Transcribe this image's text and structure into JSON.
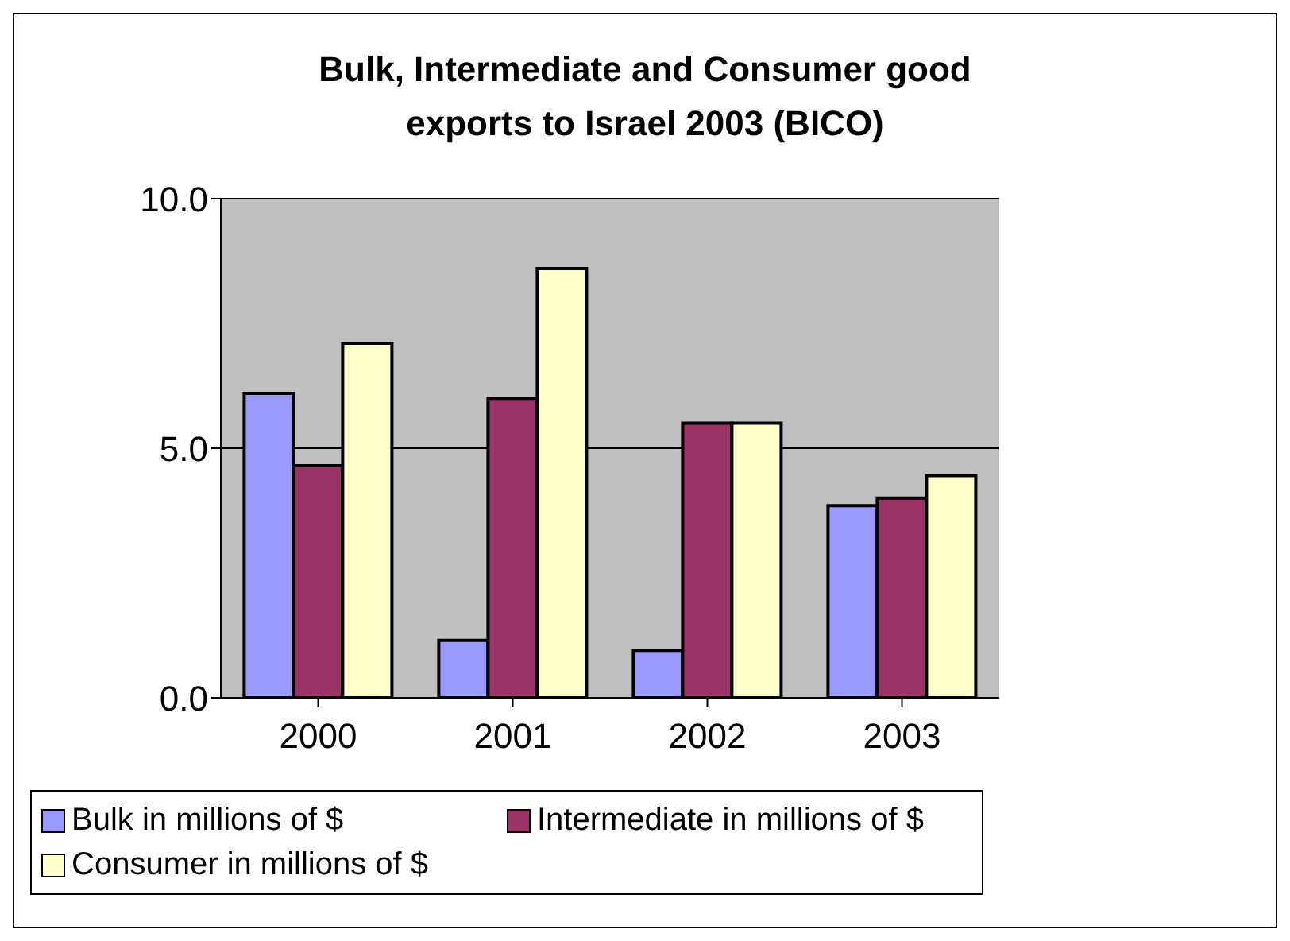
{
  "chart_data": {
    "type": "bar",
    "title": "Bulk, Intermediate and Consumer good exports to Israel 2003 (BICO)",
    "categories": [
      "2000",
      "2001",
      "2002",
      "2003"
    ],
    "series": [
      {
        "name": "Bulk in millions of $",
        "color": "#9999ff",
        "values": [
          6.1,
          1.15,
          0.95,
          3.85
        ]
      },
      {
        "name": "Intermediate in millions of $",
        "color": "#993366",
        "values": [
          4.65,
          6.0,
          5.5,
          4.0
        ]
      },
      {
        "name": "Consumer in millions of $",
        "color": "#ffffcc",
        "values": [
          7.1,
          8.6,
          5.5,
          4.45
        ]
      }
    ],
    "ylim": [
      0,
      10
    ],
    "yticks": [
      {
        "value": 0,
        "label": "0.0"
      },
      {
        "value": 5,
        "label": "5.0"
      },
      {
        "value": 10,
        "label": "10.0"
      }
    ],
    "grid": "y",
    "legend": "bottom"
  }
}
